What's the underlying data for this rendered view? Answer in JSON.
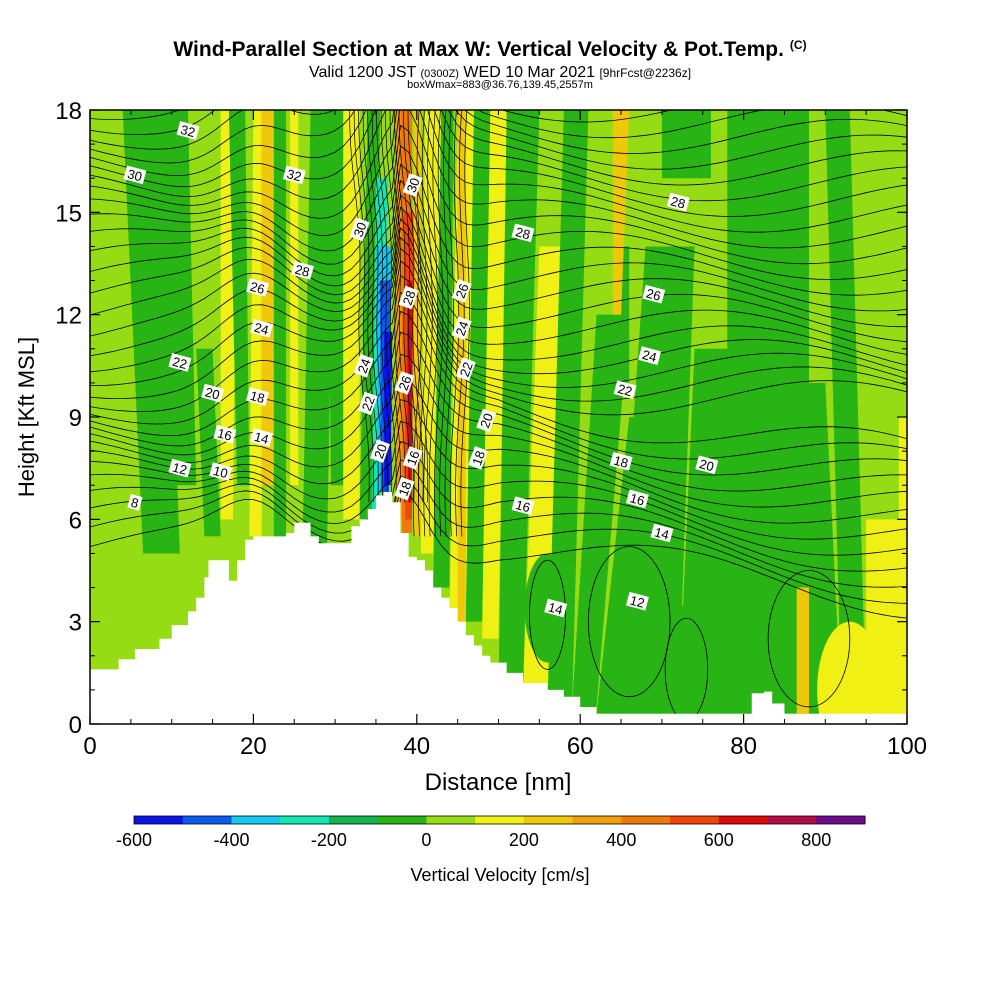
{
  "title": "Wind-Parallel Section at Max W: Vertical Velocity & Pot.Temp.",
  "title_mark": "(C)",
  "subtitle": {
    "p1": "Valid 1200 JST ",
    "p2": "(0300Z)",
    "p3": " WED 10 Mar 2021 ",
    "p4": "[9hrFcst@2236z]"
  },
  "subtitle2": "boxWmax=883@36.76,139.45,2557m",
  "colorbar": {
    "label": "Vertical Velocity [cm/s]",
    "ticks": [
      "-600",
      "-400",
      "-200",
      "0",
      "200",
      "400",
      "600",
      "800"
    ],
    "colors": [
      "#0a14e6",
      "#0a5af0",
      "#14c8f0",
      "#14e6b4",
      "#14b450",
      "#28b414",
      "#96dc14",
      "#f0f014",
      "#f0c80a",
      "#f0a00a",
      "#f0780a",
      "#f0460a",
      "#dc0a0a",
      "#b40a46",
      "#6e0a8c"
    ]
  },
  "chart_data": {
    "type": "heatmap",
    "title": "Wind-Parallel Section at Max W: Vertical Velocity & Pot.Temp.",
    "xlabel": "Distance [nm]",
    "ylabel": "Height [Kft MSL]",
    "xlim": [
      0,
      100
    ],
    "ylim": [
      0,
      18
    ],
    "xticks": [
      "0",
      "20",
      "40",
      "60",
      "80",
      "100"
    ],
    "yticks": [
      "0",
      "3",
      "6",
      "9",
      "12",
      "15",
      "18"
    ],
    "field": "Vertical Velocity [cm/s]",
    "color_levels": [
      -600,
      -500,
      -400,
      -300,
      -200,
      -100,
      0,
      100,
      200,
      300,
      400,
      500,
      600,
      700,
      800,
      900
    ],
    "max_w": 883,
    "terrain": [
      [
        0,
        1.6
      ],
      [
        3.5,
        1.9
      ],
      [
        5.5,
        2.2
      ],
      [
        8.5,
        2.5
      ],
      [
        10,
        2.9
      ],
      [
        12,
        3.3
      ],
      [
        13,
        3.7
      ],
      [
        14,
        4.3
      ],
      [
        14.5,
        4.8
      ],
      [
        17,
        4.2
      ],
      [
        18,
        4.8
      ],
      [
        19,
        5.4
      ],
      [
        20,
        5.5
      ],
      [
        24,
        5.6
      ],
      [
        25,
        5.9
      ],
      [
        27,
        5.5
      ],
      [
        28,
        5.3
      ],
      [
        30,
        5.3
      ],
      [
        32,
        5.8
      ],
      [
        33,
        6.0
      ],
      [
        34,
        6.3
      ],
      [
        35,
        6.7
      ],
      [
        36,
        6.8
      ],
      [
        37,
        6.5
      ],
      [
        38,
        5.6
      ],
      [
        39,
        4.9
      ],
      [
        40,
        4.8
      ],
      [
        41,
        4.5
      ],
      [
        42,
        4.0
      ],
      [
        43,
        3.7
      ],
      [
        44,
        3.4
      ],
      [
        45,
        3.0
      ],
      [
        46,
        2.6
      ],
      [
        47,
        2.3
      ],
      [
        48,
        2.0
      ],
      [
        49,
        1.8
      ],
      [
        51,
        1.5
      ],
      [
        53,
        1.2
      ],
      [
        56,
        1.0
      ],
      [
        58,
        0.8
      ],
      [
        60,
        0.5
      ],
      [
        62,
        0.3
      ],
      [
        80,
        0.3
      ],
      [
        81,
        0.9
      ],
      [
        82.5,
        0.95
      ],
      [
        83.5,
        0.6
      ],
      [
        85,
        0.3
      ],
      [
        100,
        0.3
      ]
    ],
    "theta_labels": [
      {
        "t": "32",
        "x": 12,
        "y": 17.4
      },
      {
        "t": "30",
        "x": 5.5,
        "y": 16.1
      },
      {
        "t": "32",
        "x": 25,
        "y": 16.1
      },
      {
        "t": "30",
        "x": 33,
        "y": 14.5
      },
      {
        "t": "30",
        "x": 39.5,
        "y": 15.8
      },
      {
        "t": "28",
        "x": 72,
        "y": 15.3
      },
      {
        "t": "28",
        "x": 53,
        "y": 14.4
      },
      {
        "t": "26",
        "x": 20.5,
        "y": 12.8
      },
      {
        "t": "28",
        "x": 26,
        "y": 13.3
      },
      {
        "t": "26",
        "x": 45.5,
        "y": 12.7
      },
      {
        "t": "28",
        "x": 39,
        "y": 12.5
      },
      {
        "t": "26",
        "x": 69,
        "y": 12.6
      },
      {
        "t": "24",
        "x": 21,
        "y": 11.6
      },
      {
        "t": "24",
        "x": 45.5,
        "y": 11.6
      },
      {
        "t": "24",
        "x": 68.5,
        "y": 10.8
      },
      {
        "t": "22",
        "x": 11,
        "y": 10.6
      },
      {
        "t": "24",
        "x": 33.5,
        "y": 10.5
      },
      {
        "t": "22",
        "x": 46,
        "y": 10.4
      },
      {
        "t": "26",
        "x": 38.5,
        "y": 10.0
      },
      {
        "t": "22",
        "x": 65.5,
        "y": 9.8
      },
      {
        "t": "20",
        "x": 15,
        "y": 9.7
      },
      {
        "t": "18",
        "x": 20.5,
        "y": 9.6
      },
      {
        "t": "22",
        "x": 34,
        "y": 9.4
      },
      {
        "t": "20",
        "x": 48.5,
        "y": 8.9
      },
      {
        "t": "16",
        "x": 16.5,
        "y": 8.5
      },
      {
        "t": "14",
        "x": 21,
        "y": 8.4
      },
      {
        "t": "20",
        "x": 35.5,
        "y": 8.0
      },
      {
        "t": "16",
        "x": 39.5,
        "y": 7.8
      },
      {
        "t": "18",
        "x": 47.5,
        "y": 7.8
      },
      {
        "t": "18",
        "x": 65,
        "y": 7.7
      },
      {
        "t": "20",
        "x": 75.5,
        "y": 7.6
      },
      {
        "t": "12",
        "x": 11,
        "y": 7.5
      },
      {
        "t": "10",
        "x": 16,
        "y": 7.4
      },
      {
        "t": "18",
        "x": 38.5,
        "y": 6.9
      },
      {
        "t": "16",
        "x": 67,
        "y": 6.6
      },
      {
        "t": "8",
        "x": 5.5,
        "y": 6.5
      },
      {
        "t": "16",
        "x": 53,
        "y": 6.4
      },
      {
        "t": "14",
        "x": 70,
        "y": 5.6
      },
      {
        "t": "14",
        "x": 57,
        "y": 3.4
      },
      {
        "t": "12",
        "x": 67,
        "y": 3.6
      }
    ]
  }
}
